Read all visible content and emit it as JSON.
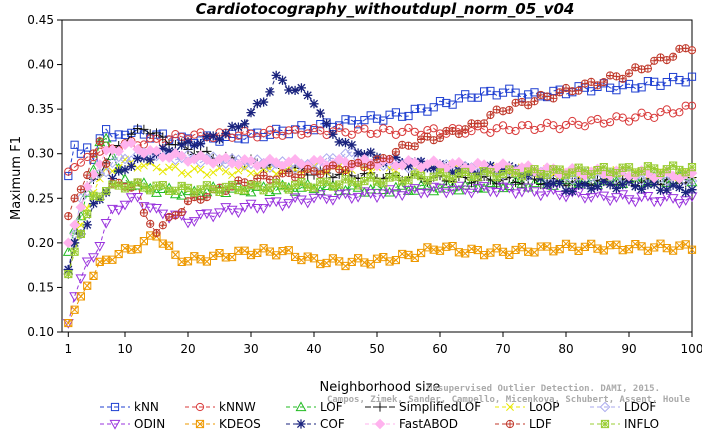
{
  "chart_data": {
    "type": "line",
    "title": "Cardiotocography_withoutdupl_norm_05_v04",
    "xlabel": "Neighborhood size",
    "ylabel": "Maximum F1",
    "xlim": [
      0,
      100
    ],
    "ylim": [
      0.1,
      0.45
    ],
    "xticks": [
      1,
      10,
      20,
      30,
      40,
      50,
      60,
      70,
      80,
      90,
      100
    ],
    "xtick_labels": [
      "1",
      "10",
      "20",
      "30",
      "40",
      "50",
      "60",
      "70",
      "80",
      "90",
      "100"
    ],
    "yticks": [
      0.1,
      0.15,
      0.2,
      0.25,
      0.3,
      0.35,
      0.4,
      0.45
    ],
    "ytick_labels": [
      "0.10",
      "0.15",
      "0.20",
      "0.25",
      "0.30",
      "0.35",
      "0.40",
      "0.45"
    ],
    "grid": false,
    "legend_position": "bottom",
    "watermark": [
      "Campos, Zimek, Sander, Campello, Micenkova, Schubert, Assent, Houle",
      "Unsupervised Outlier Detection. DAMI, 2015."
    ],
    "series": [
      {
        "name": "kNN",
        "color": "#1f3fd1",
        "marker": "square",
        "dash": "4,3",
        "points": [
          [
            1,
            0.275
          ],
          [
            2,
            0.31
          ],
          [
            3,
            0.3
          ],
          [
            4,
            0.305
          ],
          [
            5,
            0.29
          ],
          [
            6,
            0.32
          ],
          [
            7,
            0.33
          ],
          [
            8,
            0.315
          ],
          [
            9,
            0.32
          ],
          [
            10,
            0.325
          ],
          [
            15,
            0.32
          ],
          [
            20,
            0.315
          ],
          [
            30,
            0.32
          ],
          [
            40,
            0.33
          ],
          [
            50,
            0.34
          ],
          [
            55,
            0.345
          ],
          [
            60,
            0.355
          ],
          [
            65,
            0.365
          ],
          [
            70,
            0.37
          ],
          [
            75,
            0.365
          ],
          [
            80,
            0.37
          ],
          [
            85,
            0.375
          ],
          [
            90,
            0.375
          ],
          [
            95,
            0.38
          ],
          [
            100,
            0.385
          ]
        ]
      },
      {
        "name": "kNNW",
        "color": "#d93a3a",
        "marker": "circle",
        "dash": "4,3",
        "points": [
          [
            1,
            0.28
          ],
          [
            3,
            0.29
          ],
          [
            5,
            0.3
          ],
          [
            7,
            0.305
          ],
          [
            10,
            0.31
          ],
          [
            15,
            0.315
          ],
          [
            20,
            0.32
          ],
          [
            30,
            0.322
          ],
          [
            40,
            0.325
          ],
          [
            50,
            0.325
          ],
          [
            60,
            0.325
          ],
          [
            70,
            0.328
          ],
          [
            80,
            0.332
          ],
          [
            90,
            0.34
          ],
          [
            95,
            0.345
          ],
          [
            100,
            0.352
          ]
        ]
      },
      {
        "name": "LOF",
        "color": "#22bb22",
        "marker": "triangle-up",
        "dash": "4,3",
        "points": [
          [
            1,
            0.19
          ],
          [
            2,
            0.215
          ],
          [
            3,
            0.23
          ],
          [
            4,
            0.26
          ],
          [
            5,
            0.28
          ],
          [
            6,
            0.31
          ],
          [
            7,
            0.32
          ],
          [
            8,
            0.3
          ],
          [
            9,
            0.28
          ],
          [
            10,
            0.27
          ],
          [
            12,
            0.265
          ],
          [
            15,
            0.26
          ],
          [
            20,
            0.255
          ],
          [
            25,
            0.26
          ],
          [
            30,
            0.26
          ],
          [
            40,
            0.262
          ],
          [
            50,
            0.26
          ],
          [
            60,
            0.262
          ],
          [
            70,
            0.265
          ],
          [
            80,
            0.268
          ],
          [
            90,
            0.27
          ],
          [
            100,
            0.272
          ]
        ]
      },
      {
        "name": "SimplifiedLOF",
        "color": "#111111",
        "marker": "plus",
        "dash": "6,2",
        "points": [
          [
            1,
            0.165
          ],
          [
            2,
            0.2
          ],
          [
            3,
            0.24
          ],
          [
            4,
            0.26
          ],
          [
            5,
            0.27
          ],
          [
            6,
            0.28
          ],
          [
            7,
            0.29
          ],
          [
            8,
            0.3
          ],
          [
            9,
            0.31
          ],
          [
            10,
            0.315
          ],
          [
            12,
            0.325
          ],
          [
            13,
            0.33
          ],
          [
            15,
            0.32
          ],
          [
            20,
            0.305
          ],
          [
            25,
            0.295
          ],
          [
            30,
            0.29
          ],
          [
            35,
            0.285
          ],
          [
            40,
            0.278
          ],
          [
            50,
            0.275
          ],
          [
            60,
            0.272
          ],
          [
            70,
            0.27
          ],
          [
            80,
            0.268
          ],
          [
            90,
            0.268
          ],
          [
            100,
            0.27
          ]
        ]
      },
      {
        "name": "LoOP",
        "color": "#e8e800",
        "marker": "x",
        "dash": "4,3",
        "points": [
          [
            1,
            0.165
          ],
          [
            2,
            0.19
          ],
          [
            3,
            0.22
          ],
          [
            4,
            0.24
          ],
          [
            5,
            0.26
          ],
          [
            7,
            0.28
          ],
          [
            10,
            0.29
          ],
          [
            15,
            0.285
          ],
          [
            20,
            0.28
          ],
          [
            30,
            0.28
          ],
          [
            40,
            0.282
          ],
          [
            50,
            0.285
          ],
          [
            60,
            0.285
          ],
          [
            70,
            0.282
          ],
          [
            80,
            0.278
          ],
          [
            90,
            0.278
          ],
          [
            100,
            0.276
          ]
        ]
      },
      {
        "name": "LDOF",
        "color": "#aaaaee",
        "marker": "diamond",
        "dash": "4,3",
        "points": [
          [
            1,
            0.17
          ],
          [
            2,
            0.21
          ],
          [
            3,
            0.25
          ],
          [
            5,
            0.27
          ],
          [
            8,
            0.29
          ],
          [
            10,
            0.295
          ],
          [
            15,
            0.3
          ],
          [
            20,
            0.295
          ],
          [
            30,
            0.29
          ],
          [
            40,
            0.285
          ],
          [
            45,
            0.3
          ],
          [
            50,
            0.29
          ],
          [
            60,
            0.285
          ],
          [
            70,
            0.28
          ],
          [
            80,
            0.275
          ],
          [
            90,
            0.275
          ],
          [
            100,
            0.272
          ]
        ]
      },
      {
        "name": "ODIN",
        "color": "#9933dd",
        "marker": "triangle-down",
        "dash": "4,3",
        "points": [
          [
            1,
            0.11
          ],
          [
            2,
            0.14
          ],
          [
            3,
            0.16
          ],
          [
            4,
            0.175
          ],
          [
            5,
            0.185
          ],
          [
            6,
            0.2
          ],
          [
            7,
            0.22
          ],
          [
            8,
            0.235
          ],
          [
            10,
            0.245
          ],
          [
            12,
            0.25
          ],
          [
            15,
            0.235
          ],
          [
            18,
            0.23
          ],
          [
            20,
            0.225
          ],
          [
            25,
            0.235
          ],
          [
            30,
            0.24
          ],
          [
            40,
            0.25
          ],
          [
            50,
            0.255
          ],
          [
            60,
            0.26
          ],
          [
            70,
            0.26
          ],
          [
            80,
            0.255
          ],
          [
            90,
            0.25
          ],
          [
            100,
            0.248
          ]
        ]
      },
      {
        "name": "KDEOS",
        "color": "#ee9900",
        "marker": "square-x",
        "dash": "4,3",
        "points": [
          [
            1,
            0.11
          ],
          [
            2,
            0.125
          ],
          [
            3,
            0.14
          ],
          [
            4,
            0.155
          ],
          [
            5,
            0.165
          ],
          [
            6,
            0.175
          ],
          [
            8,
            0.185
          ],
          [
            10,
            0.19
          ],
          [
            13,
            0.2
          ],
          [
            15,
            0.21
          ],
          [
            18,
            0.185
          ],
          [
            20,
            0.18
          ],
          [
            25,
            0.185
          ],
          [
            30,
            0.19
          ],
          [
            35,
            0.19
          ],
          [
            40,
            0.18
          ],
          [
            45,
            0.178
          ],
          [
            50,
            0.18
          ],
          [
            55,
            0.185
          ],
          [
            60,
            0.195
          ],
          [
            65,
            0.19
          ],
          [
            70,
            0.19
          ],
          [
            80,
            0.195
          ],
          [
            90,
            0.195
          ],
          [
            100,
            0.195
          ]
        ]
      },
      {
        "name": "COF",
        "color": "#1a237e",
        "marker": "star",
        "dash": "4,3",
        "points": [
          [
            1,
            0.17
          ],
          [
            2,
            0.2
          ],
          [
            3,
            0.21
          ],
          [
            4,
            0.22
          ],
          [
            5,
            0.24
          ],
          [
            6,
            0.25
          ],
          [
            8,
            0.27
          ],
          [
            10,
            0.285
          ],
          [
            15,
            0.3
          ],
          [
            20,
            0.31
          ],
          [
            25,
            0.32
          ],
          [
            28,
            0.33
          ],
          [
            30,
            0.345
          ],
          [
            32,
            0.36
          ],
          [
            34,
            0.385
          ],
          [
            36,
            0.375
          ],
          [
            38,
            0.37
          ],
          [
            40,
            0.36
          ],
          [
            42,
            0.33
          ],
          [
            45,
            0.31
          ],
          [
            50,
            0.295
          ],
          [
            55,
            0.29
          ],
          [
            60,
            0.285
          ],
          [
            65,
            0.28
          ],
          [
            70,
            0.285
          ],
          [
            75,
            0.275
          ],
          [
            80,
            0.26
          ],
          [
            85,
            0.265
          ],
          [
            90,
            0.265
          ],
          [
            95,
            0.262
          ],
          [
            100,
            0.26
          ]
        ]
      },
      {
        "name": "FastABOD",
        "color": "#ffb3ee",
        "marker": "diamond-filled",
        "dash": "4,3",
        "points": [
          [
            1,
            0.2
          ],
          [
            2,
            0.22
          ],
          [
            3,
            0.24
          ],
          [
            4,
            0.26
          ],
          [
            5,
            0.28
          ],
          [
            7,
            0.3
          ],
          [
            10,
            0.31
          ],
          [
            15,
            0.3
          ],
          [
            20,
            0.295
          ],
          [
            30,
            0.29
          ],
          [
            40,
            0.29
          ],
          [
            50,
            0.29
          ],
          [
            60,
            0.288
          ],
          [
            70,
            0.285
          ],
          [
            80,
            0.28
          ],
          [
            90,
            0.278
          ],
          [
            100,
            0.275
          ]
        ]
      },
      {
        "name": "LDF",
        "color": "#c0392b",
        "marker": "circle-plus",
        "dash": "4,3",
        "points": [
          [
            1,
            0.23
          ],
          [
            2,
            0.25
          ],
          [
            3,
            0.26
          ],
          [
            4,
            0.28
          ],
          [
            5,
            0.3
          ],
          [
            6,
            0.31
          ],
          [
            7,
            0.29
          ],
          [
            8,
            0.27
          ],
          [
            10,
            0.26
          ],
          [
            12,
            0.27
          ],
          [
            13,
            0.23
          ],
          [
            14,
            0.22
          ],
          [
            15,
            0.215
          ],
          [
            17,
            0.225
          ],
          [
            20,
            0.245
          ],
          [
            25,
            0.26
          ],
          [
            30,
            0.27
          ],
          [
            40,
            0.28
          ],
          [
            50,
            0.29
          ],
          [
            55,
            0.31
          ],
          [
            60,
            0.32
          ],
          [
            65,
            0.33
          ],
          [
            70,
            0.35
          ],
          [
            75,
            0.36
          ],
          [
            80,
            0.37
          ],
          [
            85,
            0.38
          ],
          [
            90,
            0.39
          ],
          [
            95,
            0.405
          ],
          [
            100,
            0.42
          ]
        ]
      },
      {
        "name": "INFLO",
        "color": "#99cc33",
        "marker": "star-box",
        "dash": "4,3",
        "points": [
          [
            1,
            0.165
          ],
          [
            2,
            0.19
          ],
          [
            3,
            0.21
          ],
          [
            4,
            0.23
          ],
          [
            5,
            0.25
          ],
          [
            7,
            0.26
          ],
          [
            10,
            0.265
          ],
          [
            15,
            0.262
          ],
          [
            20,
            0.26
          ],
          [
            30,
            0.262
          ],
          [
            40,
            0.265
          ],
          [
            50,
            0.27
          ],
          [
            60,
            0.275
          ],
          [
            70,
            0.278
          ],
          [
            80,
            0.28
          ],
          [
            90,
            0.282
          ],
          [
            100,
            0.283
          ]
        ]
      }
    ]
  }
}
